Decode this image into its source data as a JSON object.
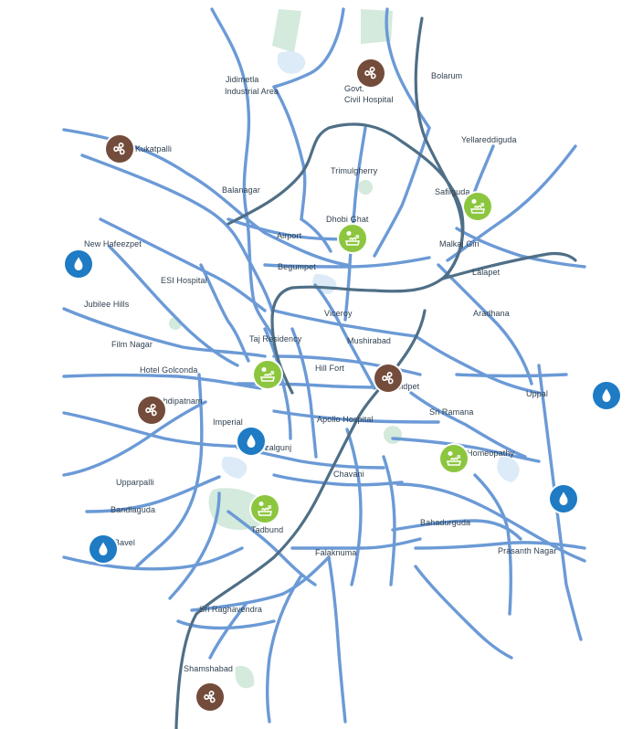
{
  "colors": {
    "road": "#6b9ad6",
    "metro": "#4f6f86",
    "park": "#d3eadc",
    "water": "#dcebf7",
    "label": "#2d3e4e",
    "pin_brown": "#744c3b",
    "pin_green": "#8cc63f",
    "pin_blue": "#1e7bc4"
  },
  "labels": {
    "jeedimetla": "Jidimetla",
    "industrial_area": "Industrial Area",
    "govt": "Govt.",
    "civil_hospital": "Civil Hospital",
    "bolarum": "Bolarum",
    "kukatpalli": "Kukatpalli",
    "yellareddiguda": "Yellareddiguda",
    "trimulgherry": "Trimulgherry",
    "balanagar": "Balanagar",
    "safilguda": "Safilguda",
    "dhobi_ghat": "Dhobi Ghat",
    "airport": "Airport",
    "new_hafeezpet": "New Hafeezpet",
    "malkaj_giri": "Malkaj Giri",
    "begumpet": "Begumpet",
    "lalapet": "Lalapet",
    "esi_hospital": "ESI Hospital",
    "jubilee_hills": "Jubilee Hills",
    "viceroy": "Viceroy",
    "aradhana": "Aradhana",
    "film_nagar": "Film Nagar",
    "taj_residency": "Taj Residency",
    "mushirabad": "Mushirabad",
    "hotel_golconda": "Hotel Golconda",
    "hill_fort": "Hill Fort",
    "abidpet": "Abidpet",
    "uppal": "Uppal",
    "mehdipatnam": "Mehdipatnam",
    "sri_ramana": "Sri Ramana",
    "imperial": "Imperial",
    "apollo_hospital": "Apollo Hospital",
    "afzalgunj": "zalgunj",
    "homeopathy": "Homeopathy",
    "chavani": "Chavani",
    "upparpalli": "Upparpalli",
    "bandlaguda": "Bandlaguda",
    "tadbund": "Tadbund",
    "bahadurguda": "Bahadurguda",
    "bavel": "Bavel",
    "prasanth_nagar": "Prasanth Nagar",
    "falaknuma": "Falaknuma",
    "sri_raghavendra": "Sri Raghavendra",
    "shamshabad": "Shamshabad"
  },
  "markers": [
    {
      "name": "marker-govt-civil-hospital",
      "kind": "brown",
      "icon": "fan-icon"
    },
    {
      "name": "marker-kukatpalli",
      "kind": "brown",
      "icon": "fan-icon"
    },
    {
      "name": "marker-abidpet",
      "kind": "brown",
      "icon": "fan-icon"
    },
    {
      "name": "marker-mehdipatnam",
      "kind": "brown",
      "icon": "fan-icon"
    },
    {
      "name": "marker-shamshabad",
      "kind": "brown",
      "icon": "fan-icon"
    },
    {
      "name": "marker-safilguda",
      "kind": "green",
      "icon": "laundry-icon"
    },
    {
      "name": "marker-dhobi-ghat",
      "kind": "green",
      "icon": "laundry-icon"
    },
    {
      "name": "marker-taj-residency",
      "kind": "green",
      "icon": "laundry-icon"
    },
    {
      "name": "marker-homeopathy",
      "kind": "green",
      "icon": "laundry-icon"
    },
    {
      "name": "marker-tadbund",
      "kind": "green",
      "icon": "laundry-icon"
    },
    {
      "name": "marker-new-hafeezpet",
      "kind": "blue",
      "icon": "water-drop-icon"
    },
    {
      "name": "marker-uppal",
      "kind": "blue",
      "icon": "water-drop-icon"
    },
    {
      "name": "marker-afzalgunj",
      "kind": "blue",
      "icon": "water-drop-icon"
    },
    {
      "name": "marker-prasanth-nagar",
      "kind": "blue",
      "icon": "water-drop-icon"
    },
    {
      "name": "marker-bavel",
      "kind": "blue",
      "icon": "water-drop-icon"
    }
  ]
}
